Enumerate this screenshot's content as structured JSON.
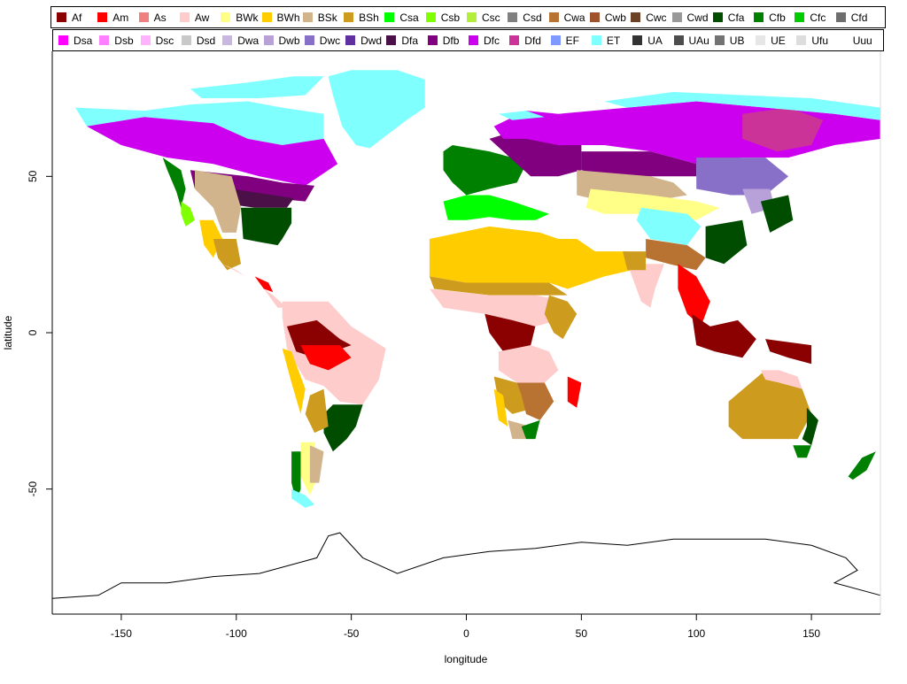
{
  "map": {
    "xlabel": "longitude",
    "ylabel": "latitude",
    "xticks": [
      -150,
      -100,
      -50,
      0,
      50,
      100,
      150
    ],
    "yticks": [
      -50,
      0,
      50
    ],
    "xlim": [
      -180,
      180
    ],
    "ylim": [
      -90,
      90
    ]
  },
  "legend": {
    "row1": [
      {
        "code": "Af",
        "color": "#8B0000"
      },
      {
        "code": "Am",
        "color": "#FF0000"
      },
      {
        "code": "As",
        "color": "#F08080"
      },
      {
        "code": "Aw",
        "color": "#FFCCCC"
      },
      {
        "code": "BWk",
        "color": "#FFFF88"
      },
      {
        "code": "BWh",
        "color": "#FFCC00"
      },
      {
        "code": "BSk",
        "color": "#D2B48C"
      },
      {
        "code": "BSh",
        "color": "#CD9B1D"
      },
      {
        "code": "Csa",
        "color": "#00FF00"
      },
      {
        "code": "Csb",
        "color": "#7FFF00"
      },
      {
        "code": "Csc",
        "color": "#B3EE3A"
      },
      {
        "code": "Csd",
        "color": "#808080"
      },
      {
        "code": "Cwa",
        "color": "#B87333"
      },
      {
        "code": "Cwb",
        "color": "#A0522D"
      },
      {
        "code": "Cwc",
        "color": "#6B4226"
      },
      {
        "code": "Cwd",
        "color": "#999999"
      },
      {
        "code": "Cfa",
        "color": "#004D00"
      },
      {
        "code": "Cfb",
        "color": "#008000"
      },
      {
        "code": "Cfc",
        "color": "#00CC00"
      },
      {
        "code": "Cfd",
        "color": "#6E6E6E"
      }
    ],
    "row2": [
      {
        "code": "Dsa",
        "color": "#FF00FF"
      },
      {
        "code": "Dsb",
        "color": "#FF80FF"
      },
      {
        "code": "Dsc",
        "color": "#FFB3FF"
      },
      {
        "code": "Dsd",
        "color": "#C8C8C8"
      },
      {
        "code": "Dwa",
        "color": "#C8B8E0"
      },
      {
        "code": "Dwb",
        "color": "#B8A0D8"
      },
      {
        "code": "Dwc",
        "color": "#8870C8"
      },
      {
        "code": "Dwd",
        "color": "#6030A0"
      },
      {
        "code": "Dfa",
        "color": "#4B1048"
      },
      {
        "code": "Dfb",
        "color": "#800080"
      },
      {
        "code": "Dfc",
        "color": "#CC00EE"
      },
      {
        "code": "Dfd",
        "color": "#CC3399"
      },
      {
        "code": "EF",
        "color": "#8099FF"
      },
      {
        "code": "ET",
        "color": "#80FFFF"
      },
      {
        "code": "UA",
        "color": "#333333"
      },
      {
        "code": "UAu",
        "color": "#4D4D4D"
      },
      {
        "code": "UB",
        "color": "#737373"
      },
      {
        "code": "UE",
        "color": "#E6E6E6"
      },
      {
        "code": "Ufu",
        "color": "#DDDDDD"
      },
      {
        "code": "Uuu",
        "color": "#FFFFFF"
      }
    ]
  }
}
